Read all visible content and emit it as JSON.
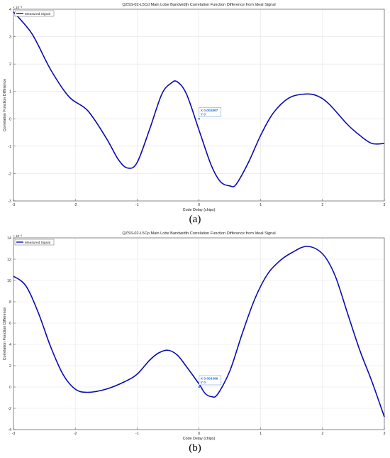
{
  "chart_data": [
    {
      "type": "line",
      "title": "QZSS-02-L5Cd Main Lobe Bandwidth Correlation Function Difference from Ideal Signal",
      "xlabel": "Code Delay (chips)",
      "ylabel": "Correlation Function Difference",
      "y_exponent": "× 10⁻³",
      "xlim": [
        -3,
        3
      ],
      "ylim": [
        -3,
        4
      ],
      "xticks": [
        "-3",
        "-2",
        "-1",
        "0",
        "1",
        "2",
        "3"
      ],
      "yticks": [
        "-3",
        "-2",
        "-1",
        "0",
        "1",
        "2",
        "3",
        "4"
      ],
      "grid": true,
      "legend": "top-left",
      "series": [
        {
          "name": "Measured Signal",
          "color": "#0a0ab4",
          "x": [
            -3.0,
            -2.7,
            -2.4,
            -2.1,
            -1.8,
            -1.5,
            -1.3,
            -1.15,
            -1.0,
            -0.8,
            -0.6,
            -0.45,
            -0.35,
            -0.2,
            0.0,
            0.2,
            0.35,
            0.5,
            0.6,
            0.8,
            1.0,
            1.2,
            1.45,
            1.7,
            1.9,
            2.1,
            2.4,
            2.6,
            2.8,
            3.0
          ],
          "y": [
            3.9,
            3.1,
            1.8,
            0.8,
            0.3,
            -0.7,
            -1.5,
            -1.8,
            -1.6,
            -0.4,
            0.9,
            1.3,
            1.35,
            0.9,
            -0.4,
            -1.7,
            -2.3,
            -2.45,
            -2.4,
            -1.6,
            -0.6,
            0.2,
            0.75,
            0.9,
            0.85,
            0.55,
            -0.2,
            -0.6,
            -0.9,
            -0.9
          ]
        }
      ],
      "datatip": {
        "x": "0.002897",
        "y": "0",
        "x_label": "X 0.002897",
        "y_label": "Y 0"
      }
    },
    {
      "type": "line",
      "title": "QZSS-02-L5Cp Main Lobe Bandwidth Correlation Function Difference from Ideal Signal",
      "xlabel": "Code Delay (chips)",
      "ylabel": "Correlation Function Difference",
      "y_exponent": "× 10⁻³",
      "xlim": [
        -3,
        3
      ],
      "ylim": [
        -4,
        14
      ],
      "xticks": [
        "-3",
        "-2",
        "-1",
        "0",
        "1",
        "2",
        "3"
      ],
      "yticks": [
        "-4",
        "-2",
        "0",
        "2",
        "4",
        "6",
        "8",
        "10",
        "12",
        "14"
      ],
      "grid": true,
      "legend": "top-left",
      "series": [
        {
          "name": "Measured Signal",
          "color": "#0a0ab4",
          "x": [
            -3.0,
            -2.8,
            -2.6,
            -2.4,
            -2.2,
            -2.0,
            -1.8,
            -1.5,
            -1.2,
            -1.0,
            -0.8,
            -0.65,
            -0.5,
            -0.35,
            -0.2,
            0.0,
            0.1,
            0.2,
            0.3,
            0.5,
            0.7,
            0.9,
            1.1,
            1.3,
            1.5,
            1.75,
            2.0,
            2.2,
            2.4,
            2.6,
            2.8,
            3.0
          ],
          "y": [
            10.4,
            9.5,
            7.0,
            3.8,
            1.2,
            -0.2,
            -0.5,
            -0.2,
            0.5,
            1.2,
            2.5,
            3.2,
            3.45,
            3.0,
            1.9,
            0.3,
            -0.6,
            -0.9,
            -0.7,
            1.5,
            5.0,
            8.2,
            10.5,
            11.8,
            12.6,
            13.2,
            12.5,
            10.5,
            7.0,
            3.5,
            0.5,
            -2.8
          ]
        }
      ],
      "datatip": {
        "x": "0.003396",
        "y": "0",
        "x_label": "X 0.003396",
        "y_label": "Y 0"
      }
    }
  ],
  "panels": {
    "a": "(a)",
    "b": "(b)"
  }
}
